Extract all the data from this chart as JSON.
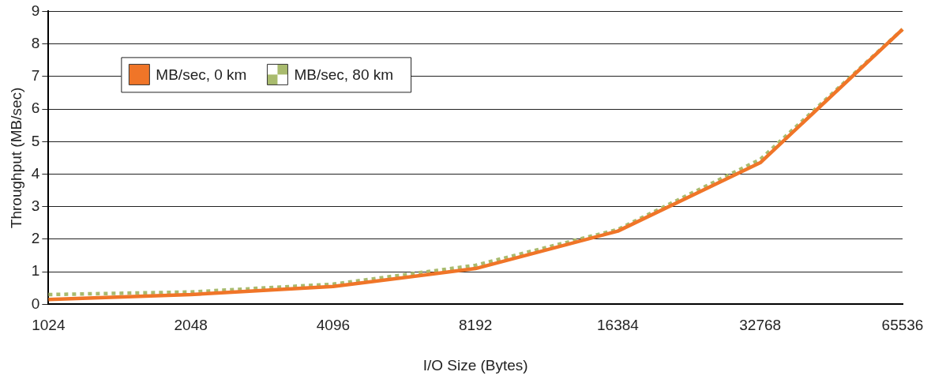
{
  "chart_data": {
    "type": "line",
    "xlabel": "I/O Size (Bytes)",
    "ylabel": "Throughput (MB/sec)",
    "categories": [
      "1024",
      "2048",
      "4096",
      "8192",
      "16384",
      "32768",
      "65536"
    ],
    "series": [
      {
        "name": "MB/sec, 0 km",
        "color": "#f07528",
        "values": [
          0.15,
          0.3,
          0.55,
          1.1,
          2.25,
          4.35,
          8.45
        ],
        "line_style": "solid"
      },
      {
        "name": "MB/sec, 80 km",
        "color": "#a9bb6e",
        "values": [
          0.3,
          0.38,
          0.62,
          1.2,
          2.3,
          4.45,
          8.45
        ],
        "line_style": "dotted"
      }
    ],
    "ylim": [
      0,
      9
    ],
    "yticks": [
      0,
      1,
      2,
      3,
      4,
      5,
      6,
      7,
      8,
      9
    ],
    "grid": "y",
    "legend": "top left",
    "marker": "none"
  }
}
